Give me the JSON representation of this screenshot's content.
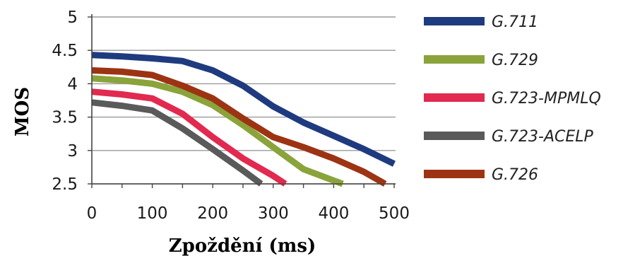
{
  "chart_data": {
    "type": "line",
    "xlabel": "Zpoždění (ms)",
    "ylabel": "MOS",
    "xlim": [
      0,
      500
    ],
    "ylim": [
      2.5,
      5
    ],
    "x_ticks": [
      "0",
      "100",
      "200",
      "300",
      "400",
      "500"
    ],
    "y_ticks": [
      "2.5",
      "3",
      "3.5",
      "4",
      "4.5",
      "5"
    ],
    "grid": "horizontal",
    "legend_position": "right",
    "series": [
      {
        "name": "G.711",
        "color": "#1f3b7f",
        "points": [
          [
            0,
            4.43
          ],
          [
            50,
            4.41
          ],
          [
            100,
            4.38
          ],
          [
            150,
            4.34
          ],
          [
            200,
            4.2
          ],
          [
            250,
            3.97
          ],
          [
            300,
            3.66
          ],
          [
            350,
            3.42
          ],
          [
            400,
            3.22
          ],
          [
            450,
            3.02
          ],
          [
            500,
            2.8
          ]
        ]
      },
      {
        "name": "G.729",
        "color": "#8aa33a",
        "points": [
          [
            0,
            4.08
          ],
          [
            50,
            4.05
          ],
          [
            100,
            4.0
          ],
          [
            150,
            3.88
          ],
          [
            200,
            3.68
          ],
          [
            250,
            3.38
          ],
          [
            300,
            3.05
          ],
          [
            350,
            2.72
          ],
          [
            400,
            2.55
          ],
          [
            415,
            2.5
          ]
        ]
      },
      {
        "name": "G.723-MPMLQ",
        "color": "#e2294f",
        "points": [
          [
            0,
            3.88
          ],
          [
            50,
            3.84
          ],
          [
            100,
            3.78
          ],
          [
            150,
            3.55
          ],
          [
            200,
            3.2
          ],
          [
            250,
            2.88
          ],
          [
            300,
            2.62
          ],
          [
            320,
            2.5
          ]
        ]
      },
      {
        "name": "G.723-ACELP",
        "color": "#5a5a5a",
        "points": [
          [
            0,
            3.72
          ],
          [
            50,
            3.67
          ],
          [
            100,
            3.6
          ],
          [
            150,
            3.33
          ],
          [
            200,
            3.02
          ],
          [
            250,
            2.7
          ],
          [
            280,
            2.5
          ]
        ]
      },
      {
        "name": "G.726",
        "color": "#9c3413",
        "points": [
          [
            0,
            4.2
          ],
          [
            50,
            4.18
          ],
          [
            100,
            4.13
          ],
          [
            150,
            3.97
          ],
          [
            200,
            3.78
          ],
          [
            250,
            3.48
          ],
          [
            300,
            3.2
          ],
          [
            350,
            3.05
          ],
          [
            400,
            2.88
          ],
          [
            450,
            2.68
          ],
          [
            485,
            2.5
          ]
        ]
      }
    ]
  }
}
